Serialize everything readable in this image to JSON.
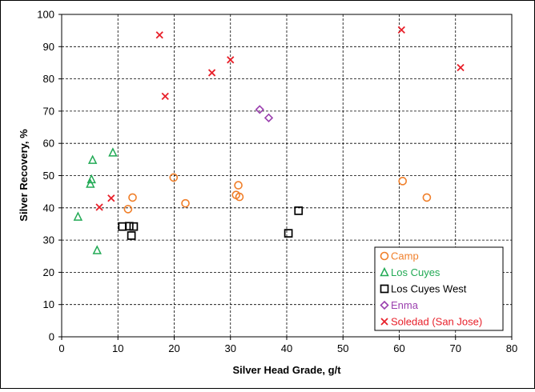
{
  "chart_data": {
    "type": "scatter",
    "title": "",
    "xlabel": "Silver Head Grade, g/t",
    "ylabel": "Silver Recovery, %",
    "xlim": [
      0,
      80
    ],
    "ylim": [
      0,
      100
    ],
    "x_ticks": [
      0,
      10,
      20,
      30,
      40,
      50,
      60,
      70,
      80
    ],
    "y_ticks": [
      0,
      10,
      20,
      30,
      40,
      50,
      60,
      70,
      80,
      90,
      100
    ],
    "grid": true,
    "legend_position": "bottom-right",
    "series": [
      {
        "name": "Camp",
        "marker": "circle",
        "color": "#f07f2a",
        "points": [
          [
            11.8,
            39.6
          ],
          [
            12.6,
            43.2
          ],
          [
            19.9,
            49.4
          ],
          [
            22.0,
            41.4
          ],
          [
            31.0,
            44.0
          ],
          [
            31.4,
            47.0
          ],
          [
            31.6,
            43.4
          ],
          [
            60.6,
            48.3
          ],
          [
            64.9,
            43.2
          ]
        ]
      },
      {
        "name": "Los Cuyes",
        "marker": "triangle",
        "color": "#22aa55",
        "points": [
          [
            2.9,
            37.2
          ],
          [
            5.1,
            47.4
          ],
          [
            5.3,
            48.8
          ],
          [
            5.5,
            54.8
          ],
          [
            6.3,
            26.8
          ],
          [
            9.1,
            57.1
          ]
        ]
      },
      {
        "name": "Los Cuyes West",
        "marker": "square",
        "color": "#000000",
        "points": [
          [
            10.8,
            34.2
          ],
          [
            12.0,
            34.3
          ],
          [
            12.4,
            31.4
          ],
          [
            12.8,
            34.2
          ],
          [
            40.3,
            32.1
          ],
          [
            42.1,
            39.1
          ]
        ]
      },
      {
        "name": "Enma",
        "marker": "diamond",
        "color": "#9a3fae",
        "points": [
          [
            35.2,
            70.5
          ],
          [
            36.8,
            67.9
          ]
        ]
      },
      {
        "name": "Soledad (San Jose)",
        "marker": "x",
        "color": "#e8202a",
        "points": [
          [
            6.7,
            40.2
          ],
          [
            8.8,
            43.0
          ],
          [
            17.4,
            93.6
          ],
          [
            18.4,
            74.6
          ],
          [
            26.7,
            81.9
          ],
          [
            30.0,
            85.9
          ],
          [
            60.4,
            95.2
          ],
          [
            70.9,
            83.5
          ]
        ]
      }
    ]
  }
}
